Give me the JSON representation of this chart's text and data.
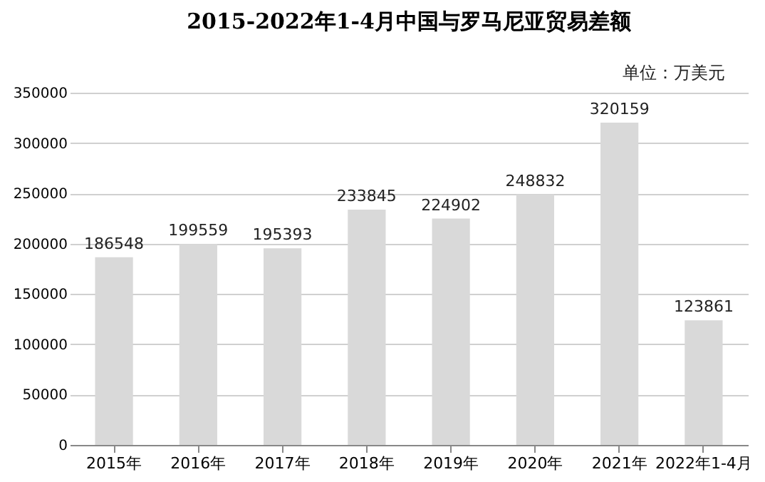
{
  "chart_data": {
    "type": "bar",
    "title": "2015-2022年1-4月中国与罗马尼亚贸易差额",
    "annotations": [
      "单位：万美元"
    ],
    "categories": [
      "2015年",
      "2016年",
      "2017年",
      "2018年",
      "2019年",
      "2020年",
      "2021年",
      "2022年1-4月"
    ],
    "values": [
      186548,
      199559,
      195393,
      233845,
      224902,
      248832,
      320159,
      123861
    ],
    "color": "#d9d9d9",
    "ylim": [
      0,
      350000
    ],
    "yticks": [
      0,
      50000,
      100000,
      150000,
      200000,
      250000,
      300000,
      350000
    ],
    "grid": "y",
    "data_labels": true
  }
}
